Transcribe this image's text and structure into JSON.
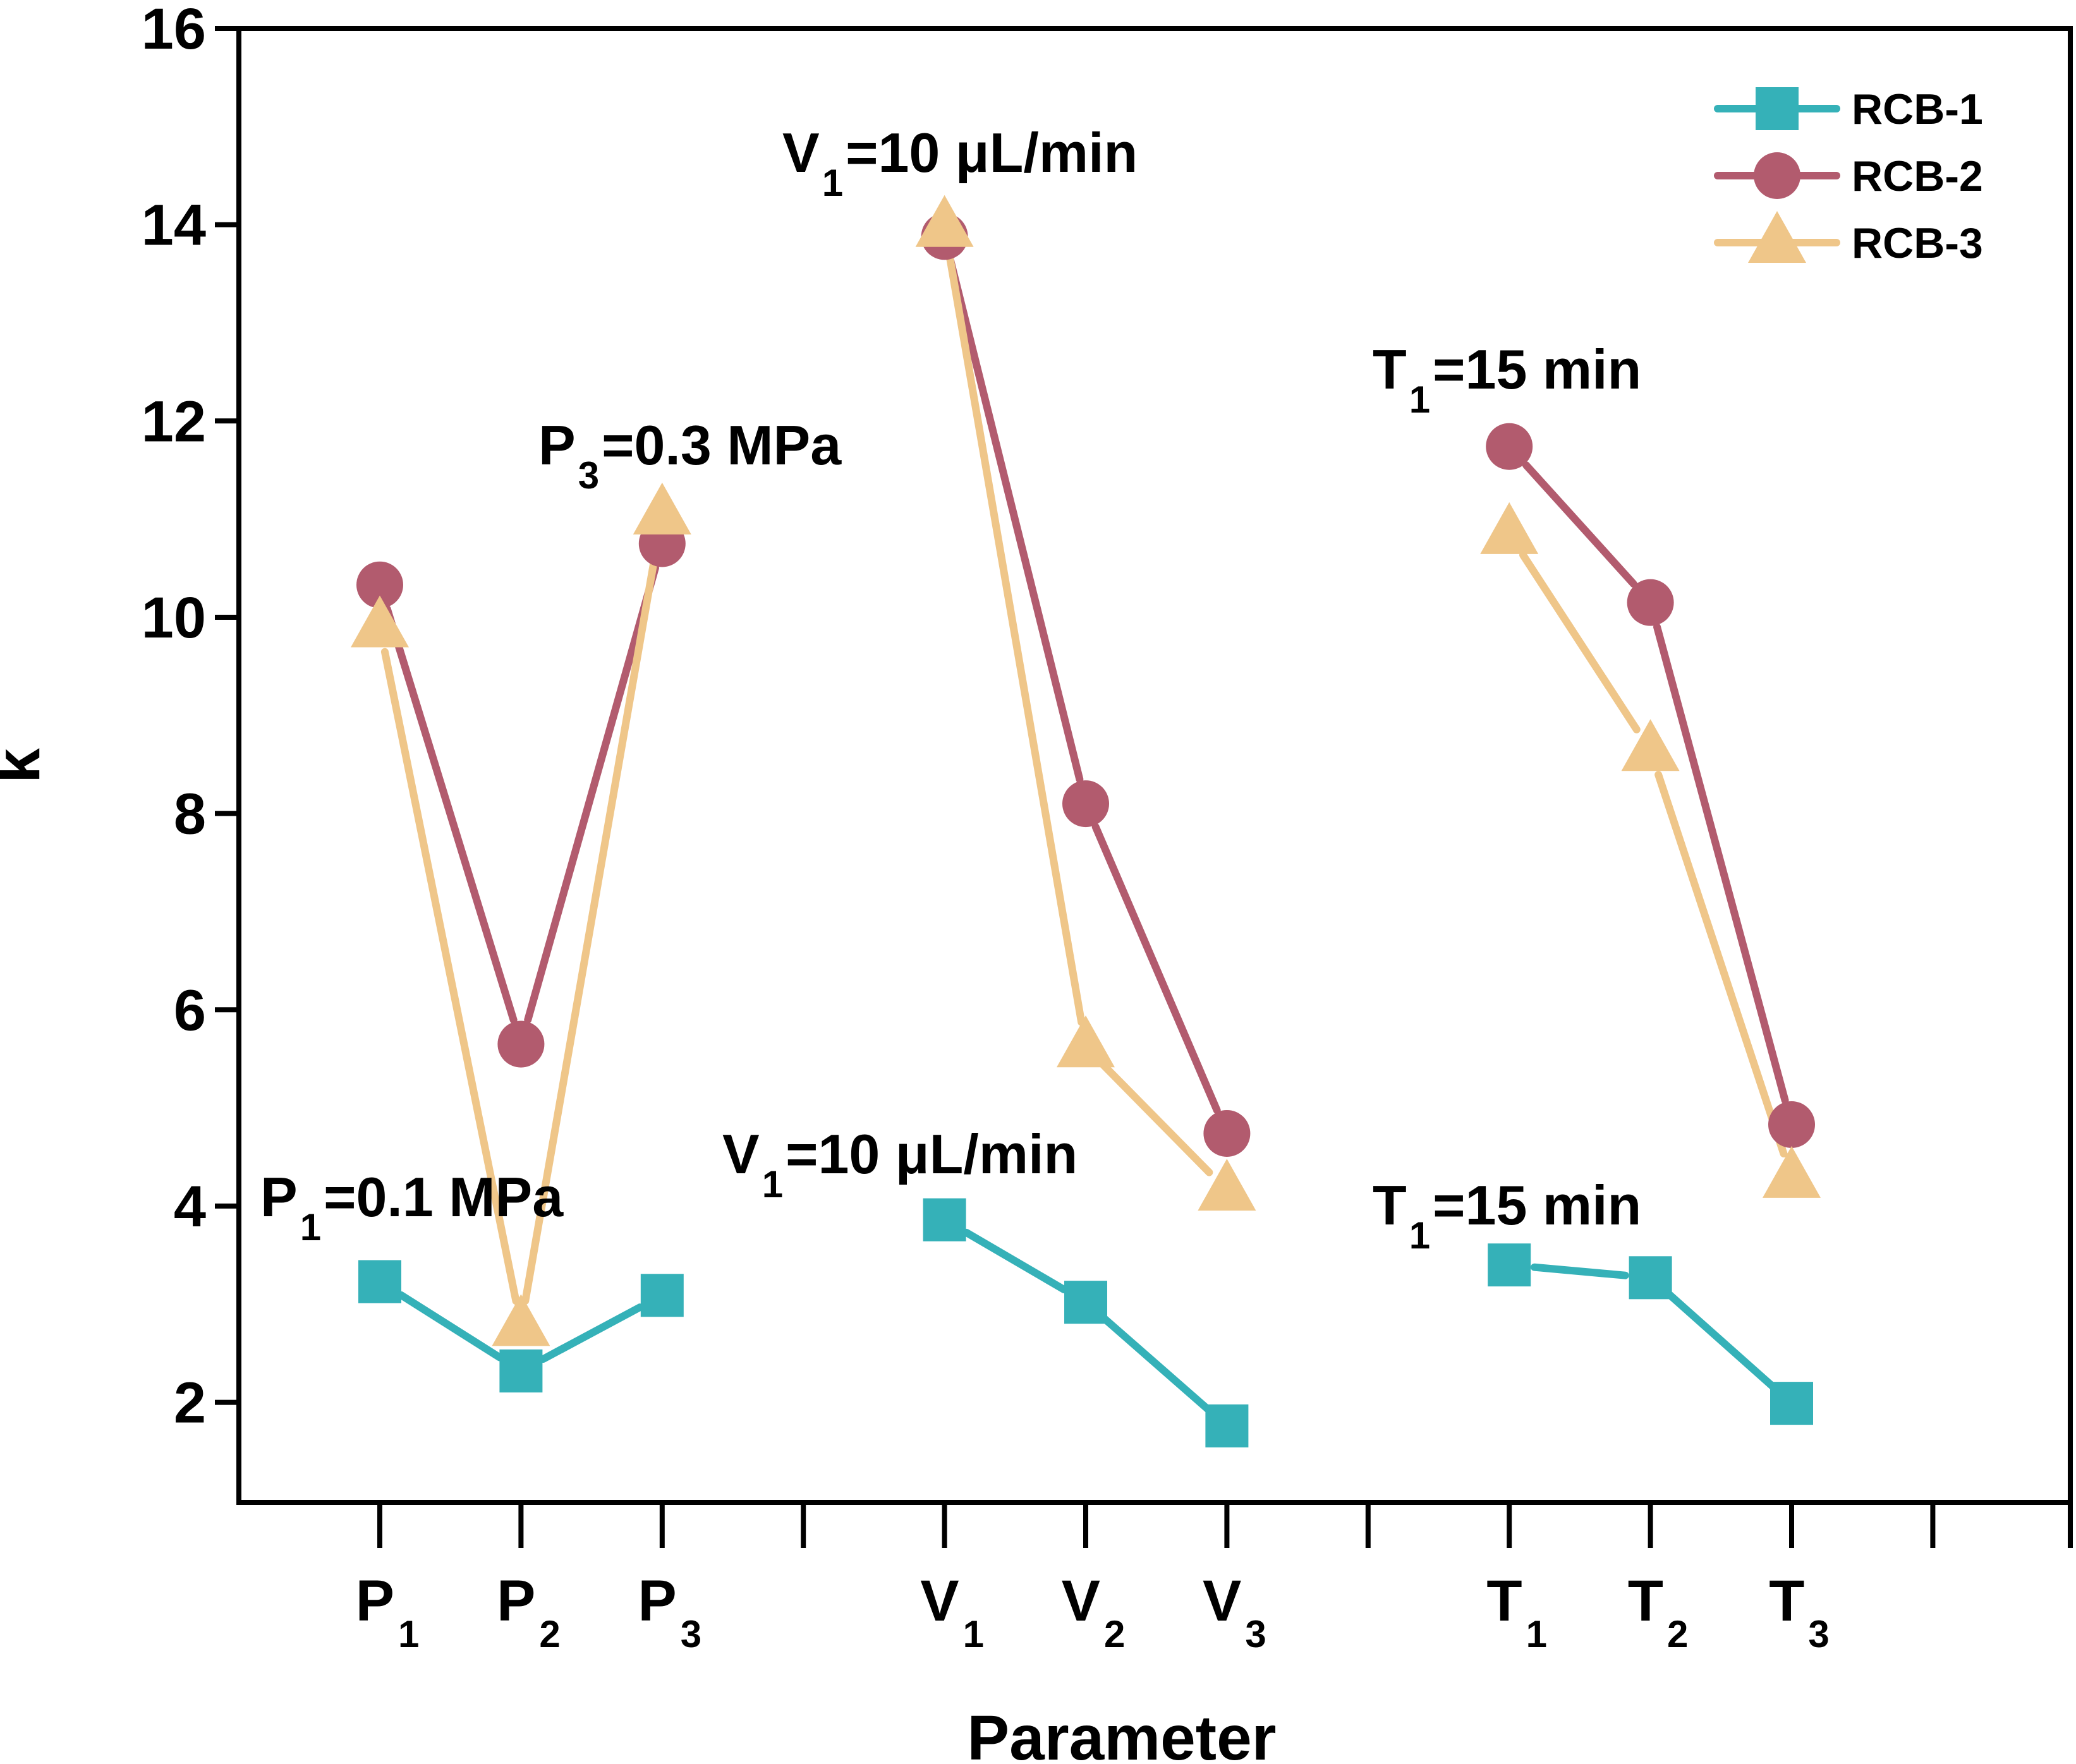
{
  "chart_data": {
    "type": "line",
    "xlabel": "Parameter",
    "ylabel": "k",
    "ylim": [
      0.98,
      16
    ],
    "yticks": [
      2,
      4,
      6,
      8,
      10,
      12,
      14,
      16
    ],
    "groups": [
      {
        "name": "P",
        "categories": [
          {
            "main": "P",
            "sub": "1"
          },
          {
            "main": "P",
            "sub": "2"
          },
          {
            "main": "P",
            "sub": "3"
          }
        ]
      },
      {
        "name": "V",
        "categories": [
          {
            "main": "V",
            "sub": "1"
          },
          {
            "main": "V",
            "sub": "2"
          },
          {
            "main": "V",
            "sub": "3"
          }
        ]
      },
      {
        "name": "T",
        "categories": [
          {
            "main": "T",
            "sub": "1"
          },
          {
            "main": "T",
            "sub": "2"
          },
          {
            "main": "T",
            "sub": "3"
          }
        ]
      }
    ],
    "series": [
      {
        "name": "RCB-1",
        "color": "#35b1b8",
        "marker": "square",
        "values": [
          [
            3.23,
            2.32,
            3.09
          ],
          [
            3.86,
            3.02,
            1.76
          ],
          [
            3.4,
            3.27,
            1.99
          ]
        ]
      },
      {
        "name": "RCB-2",
        "color": "#b25b6e",
        "marker": "circle",
        "values": [
          [
            10.33,
            5.65,
            10.75
          ],
          [
            13.88,
            8.1,
            4.74
          ],
          [
            11.74,
            10.15,
            4.83
          ]
        ]
      },
      {
        "name": "RCB-3",
        "color": "#efc689",
        "marker": "triangle",
        "values": [
          [
            9.9,
            2.78,
            11.05
          ],
          [
            13.98,
            5.62,
            4.16
          ],
          [
            10.85,
            8.64,
            4.29
          ]
        ]
      }
    ],
    "legend": {
      "position": "top-right",
      "entries": [
        "RCB-1",
        "RCB-2",
        "RCB-3"
      ]
    },
    "annotations": [
      {
        "main": "P",
        "sub": "1",
        "rest": "=0.1 MPa"
      },
      {
        "main": "P",
        "sub": "3",
        "rest": "=0.3 MPa"
      },
      {
        "main": "V",
        "sub": "1",
        "rest": "=10 μL/min"
      },
      {
        "main": "V",
        "sub": "1",
        "rest": "=10 μL/min"
      },
      {
        "main": "T",
        "sub": "1",
        "rest": "=15 min"
      },
      {
        "main": "T",
        "sub": "1",
        "rest": "=15 min"
      }
    ]
  }
}
